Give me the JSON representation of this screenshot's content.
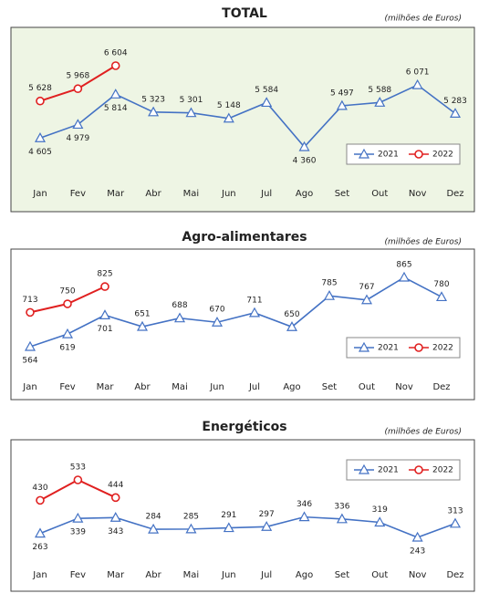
{
  "chart_data": [
    {
      "type": "line",
      "title": "TOTAL",
      "subtitle": "(milhões de Euros)",
      "background": "#eef5e4",
      "legend": "lower right",
      "categories": [
        "Jan",
        "Fev",
        "Mar",
        "Abr",
        "Mai",
        "Jun",
        "Jul",
        "Ago",
        "Set",
        "Out",
        "Nov",
        "Dez"
      ],
      "series": [
        {
          "name": "2021",
          "color": "#4472c4",
          "marker": "triangle",
          "values": [
            4605,
            4979,
            5814,
            5323,
            5301,
            5148,
            5584,
            4360,
            5497,
            5588,
            6071,
            5283
          ],
          "value_labels": [
            "4 605",
            "4 979",
            "5 814",
            "5 323",
            "5 301",
            "5 148",
            "5 584",
            "4 360",
            "5 497",
            "5 588",
            "6 071",
            "5 283"
          ]
        },
        {
          "name": "2022",
          "color": "#e02020",
          "marker": "circle",
          "values": [
            5628,
            5968,
            6604,
            null,
            null,
            null,
            null,
            null,
            null,
            null,
            null,
            null
          ],
          "value_labels": [
            "5 628",
            "5 968",
            "6 604",
            null,
            null,
            null,
            null,
            null,
            null,
            null,
            null,
            null
          ]
        }
      ]
    },
    {
      "type": "line",
      "title": "Agro-alimentares",
      "subtitle": "(milhões de Euros)",
      "background": "#ffffff",
      "legend": "lower right",
      "categories": [
        "Jan",
        "Fev",
        "Mar",
        "Abr",
        "Mai",
        "Jun",
        "Jul",
        "Ago",
        "Set",
        "Out",
        "Nov",
        "Dez"
      ],
      "series": [
        {
          "name": "2021",
          "color": "#4472c4",
          "marker": "triangle",
          "values": [
            564,
            619,
            701,
            651,
            688,
            670,
            711,
            650,
            785,
            767,
            865,
            780
          ]
        },
        {
          "name": "2022",
          "color": "#e02020",
          "marker": "circle",
          "values": [
            713,
            750,
            825,
            null,
            null,
            null,
            null,
            null,
            null,
            null,
            null,
            null
          ]
        }
      ]
    },
    {
      "type": "line",
      "title": "Energéticos",
      "subtitle": "(milhões de Euros)",
      "background": "#ffffff",
      "legend": "upper right",
      "categories": [
        "Jan",
        "Fev",
        "Mar",
        "Abr",
        "Mai",
        "Jun",
        "Jul",
        "Ago",
        "Set",
        "Out",
        "Nov",
        "Dez"
      ],
      "series": [
        {
          "name": "2021",
          "color": "#4472c4",
          "marker": "triangle",
          "values": [
            263,
            339,
            343,
            284,
            285,
            291,
            297,
            346,
            336,
            319,
            243,
            313
          ]
        },
        {
          "name": "2022",
          "color": "#e02020",
          "marker": "circle",
          "values": [
            430,
            533,
            444,
            null,
            null,
            null,
            null,
            null,
            null,
            null,
            null,
            null
          ]
        }
      ]
    }
  ]
}
